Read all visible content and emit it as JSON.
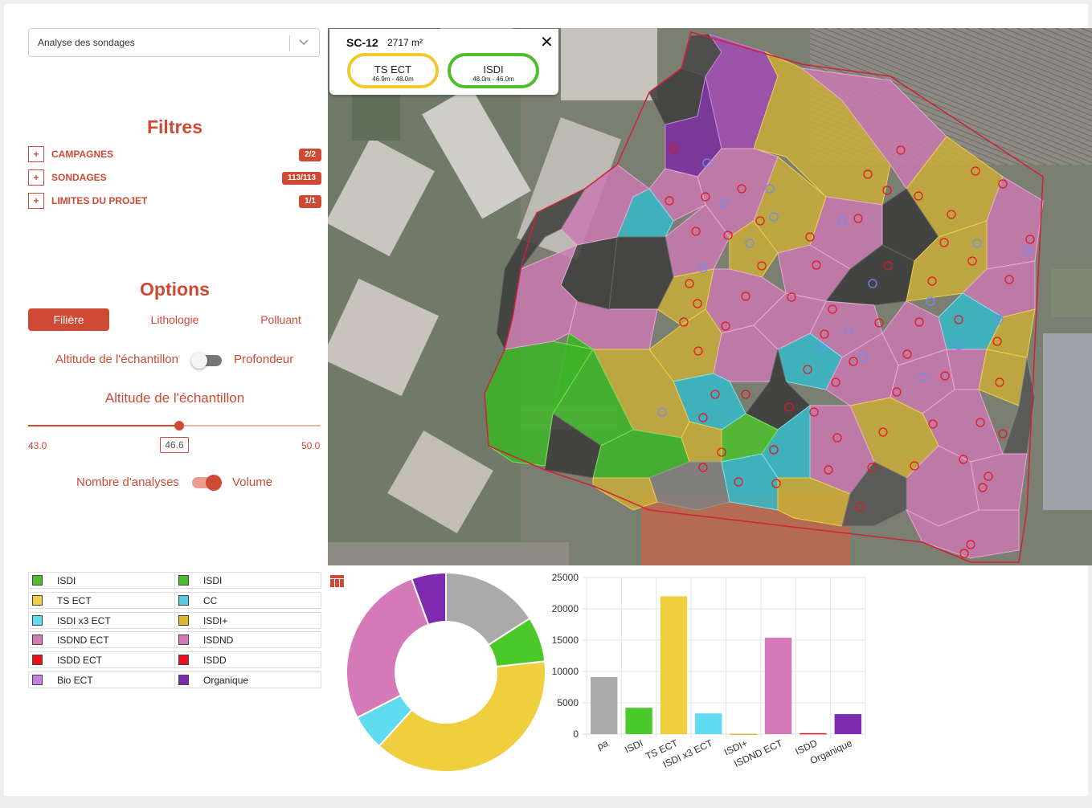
{
  "select": {
    "value": "Analyse des sondages"
  },
  "filters": {
    "title": "Filtres",
    "items": [
      {
        "label": "CAMPAGNES",
        "badge": "2/2"
      },
      {
        "label": "SONDAGES",
        "badge": "113/113"
      },
      {
        "label": "LIMITES DU PROJET",
        "badge": "1/1"
      }
    ]
  },
  "options": {
    "title": "Options",
    "tabs": [
      "Filière",
      "Lithologie",
      "Polluant"
    ],
    "toggle1": {
      "left": "Altitude de l'échantillon",
      "right": "Profondeur",
      "on": false
    },
    "slider": {
      "title": "Altitude de l'échantillon",
      "min": "43.0",
      "max": "50.0",
      "value": "46.6",
      "fraction": 0.514
    },
    "toggle2": {
      "left": "Nombre d'analyses",
      "right": "Volume",
      "on": true
    }
  },
  "legend": {
    "left": [
      {
        "label": "ISDI",
        "color": "#4cbf2a"
      },
      {
        "label": "TS ECT",
        "color": "#f0d04a"
      },
      {
        "label": "ISDI x3 ECT",
        "color": "#5fdcf0"
      },
      {
        "label": "ISDND ECT",
        "color": "#d679b8"
      },
      {
        "label": "ISDD ECT",
        "color": "#e8121c"
      },
      {
        "label": "Bio ECT",
        "color": "#c77fe0"
      }
    ],
    "right": [
      {
        "label": "ISDI",
        "color": "#4cbf2a"
      },
      {
        "label": "CC",
        "color": "#5cc9de"
      },
      {
        "label": "ISDI+",
        "color": "#e3b52a"
      },
      {
        "label": "ISDND",
        "color": "#d679b8"
      },
      {
        "label": "ISDD",
        "color": "#e8121c"
      },
      {
        "label": "Organique",
        "color": "#7d2ab0"
      }
    ]
  },
  "popup": {
    "title": "SC-12",
    "area": "2717 m²",
    "close": "✕",
    "pills": [
      {
        "label": "TS ECT",
        "depth": "46.9m - 48.0m",
        "color": "#f0c830"
      },
      {
        "label": "ISDI",
        "depth": "48.0m - 46.0m",
        "color": "#4cbf2a"
      }
    ]
  },
  "chart_data": [
    {
      "type": "pie",
      "variant": "donut",
      "slices": [
        {
          "label": "pa",
          "value": 9100,
          "color": "#aaaaaa"
        },
        {
          "label": "ISDI",
          "value": 4200,
          "color": "#4cc92a"
        },
        {
          "label": "TS ECT",
          "value": 22000,
          "color": "#f0cf3e"
        },
        {
          "label": "ISDI x3 ECT",
          "value": 3300,
          "color": "#5fdcf0"
        },
        {
          "label": "ISDND ECT",
          "value": 15400,
          "color": "#d679b8"
        },
        {
          "label": "Organique",
          "value": 3200,
          "color": "#7d2ab0"
        }
      ]
    },
    {
      "type": "bar",
      "categories": [
        "pa",
        "ISDI",
        "TS ECT",
        "ISDI x3 ECT",
        "ISDI+",
        "ISDND ECT",
        "ISDD",
        "Organique"
      ],
      "values": [
        9100,
        4200,
        22000,
        3300,
        50,
        15400,
        150,
        3200
      ],
      "colors": [
        "#aaaaaa",
        "#4cc92a",
        "#f0cf3e",
        "#5fdcf0",
        "#e3b52a",
        "#d679b8",
        "#e8121c",
        "#7d2ab0"
      ],
      "yticks": [
        "0",
        "5000",
        "10000",
        "15000",
        "20000",
        "25000"
      ],
      "ylim": [
        0,
        25000
      ],
      "grid": true
    }
  ]
}
